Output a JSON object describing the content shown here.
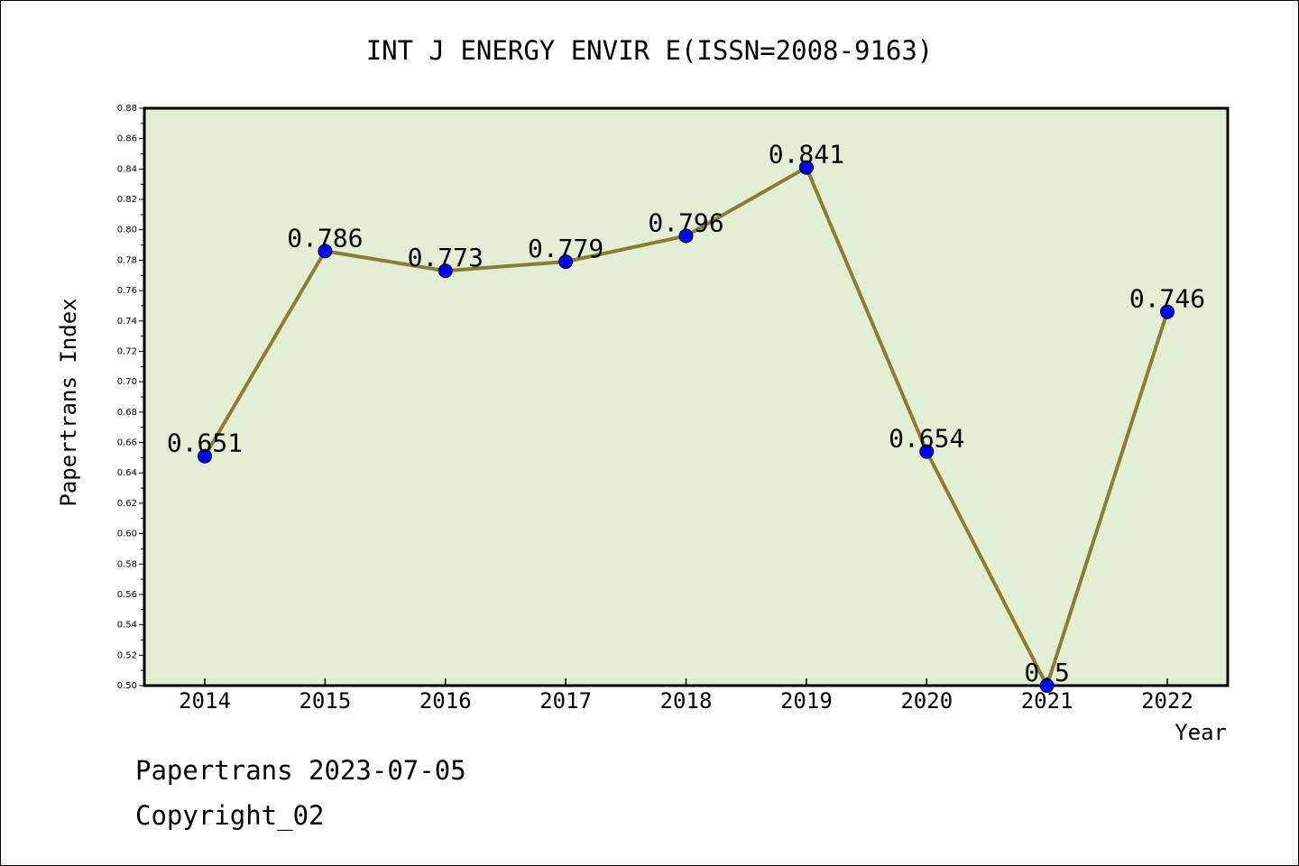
{
  "chart_data": {
    "type": "line",
    "title": "INT J ENERGY ENVIR E(ISSN=2008-9163)",
    "xlabel": "Year",
    "ylabel": "Papertrans Index",
    "categories": [
      "2014",
      "2015",
      "2016",
      "2017",
      "2018",
      "2019",
      "2020",
      "2021",
      "2022"
    ],
    "values": [
      0.651,
      0.786,
      0.773,
      0.779,
      0.796,
      0.841,
      0.654,
      0.5,
      0.746
    ],
    "data_labels": [
      "0.651",
      "0.786",
      "0.773",
      "0.779",
      "0.796",
      "0.841",
      "0.654",
      "0.5",
      "0.746"
    ],
    "ylim": [
      0.5,
      0.88
    ],
    "yticks": [
      "0.50",
      "0.52",
      "0.54",
      "0.56",
      "0.58",
      "0.60",
      "0.62",
      "0.64",
      "0.66",
      "0.68",
      "0.70",
      "0.72",
      "0.74",
      "0.76",
      "0.78",
      "0.80",
      "0.82",
      "0.84",
      "0.86",
      "0.88"
    ],
    "grid": false,
    "colors": {
      "plot_background": "#e2efd4",
      "line": "#8c7d36",
      "marker": "#0000ff"
    }
  },
  "footer": {
    "line1": "Papertrans 2023-07-05",
    "line2": "Copyright_02"
  }
}
